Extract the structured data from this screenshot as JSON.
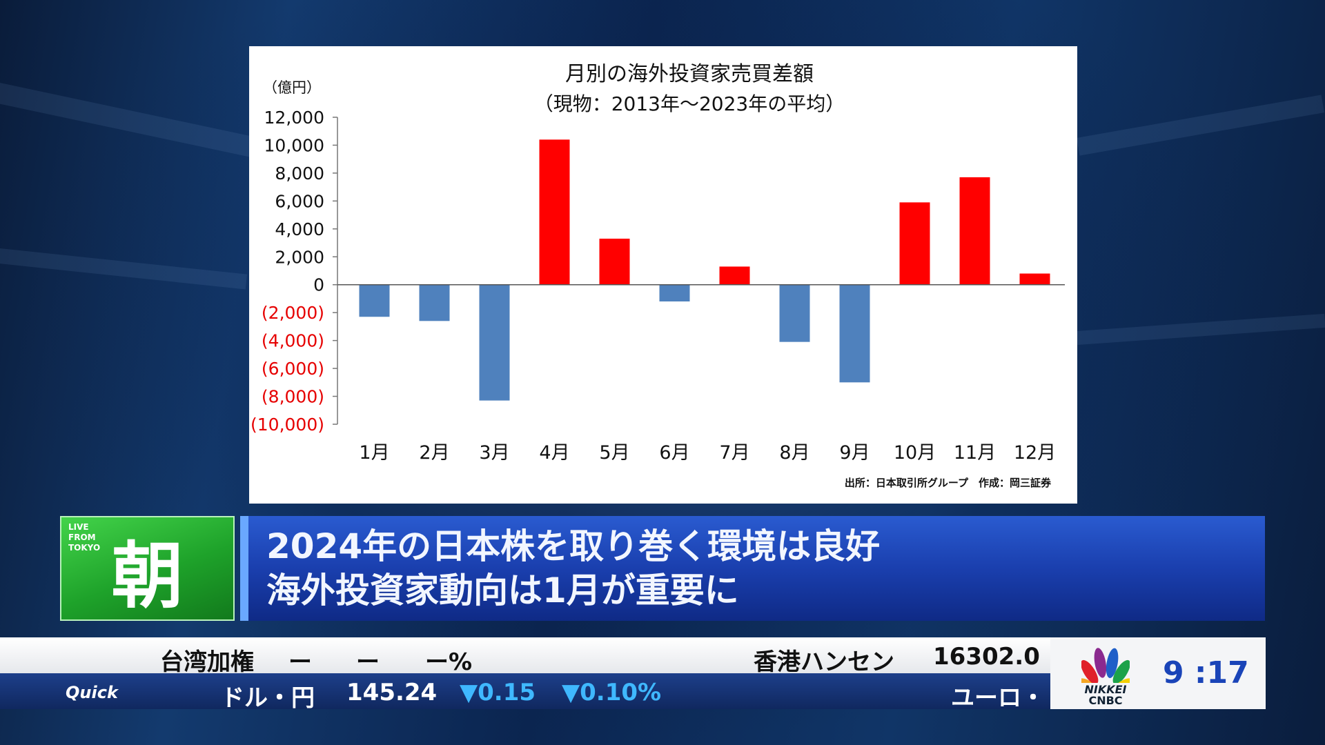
{
  "chart_data": {
    "type": "bar",
    "title": "月別の海外投資家売買差額",
    "subtitle": "（現物：2013年～2023年の平均）",
    "ylabel": "（億円）",
    "categories": [
      "1月",
      "2月",
      "3月",
      "4月",
      "5月",
      "6月",
      "7月",
      "8月",
      "9月",
      "10月",
      "11月",
      "12月"
    ],
    "values": [
      -2300,
      -2600,
      -8300,
      10400,
      3300,
      -1200,
      1300,
      -4100,
      -7000,
      5900,
      7700,
      800
    ],
    "ylim": [
      -10000,
      12000
    ],
    "yticks": [
      12000,
      10000,
      8000,
      6000,
      4000,
      2000,
      0,
      -2000,
      -4000,
      -6000,
      -8000,
      -10000
    ],
    "ytick_labels": [
      "12,000",
      "10,000",
      "8,000",
      "6,000",
      "4,000",
      "2,000",
      "0",
      "(2,000)",
      "(4,000)",
      "(6,000)",
      "(8,000)",
      "(10,000)"
    ],
    "positive_color": "#ff0000",
    "negative_color": "#4f81bd",
    "negative_label_color": "#e60000",
    "grid": false,
    "source": "出所：日本取引所グループ　作成：岡三証券"
  },
  "headline": {
    "badge_live": [
      "LIVE",
      "FROM",
      "TOKYO"
    ],
    "badge_char": "朝",
    "line1": "2024年の日本株を取り巻く環境は良好",
    "line2": "海外投資家動向は1月が重要に"
  },
  "ticker_top": {
    "item1_name": "台湾加権",
    "item1_v1": "ー",
    "item1_v2": "ー",
    "item1_v3": "ー%",
    "item2_name": "香港ハンセン",
    "item2_value": "16302.0"
  },
  "ticker_bottom": {
    "brand": "Quick",
    "name": "ドル・円",
    "value": "145.24",
    "change": "▼0.15",
    "change_pct": "▼0.10%",
    "next_name": "ユーロ・"
  },
  "logo": {
    "line1": "NIKKEI",
    "line2": "CNBC"
  },
  "clock": "9 :17"
}
